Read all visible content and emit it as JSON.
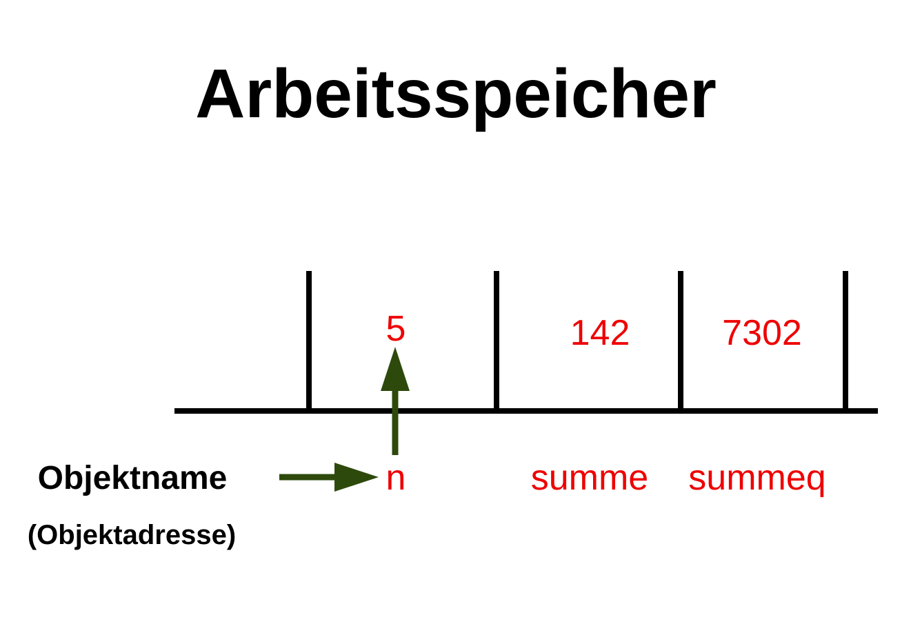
{
  "title": "Arbeitsspeicher",
  "colors": {
    "text": "#000000",
    "value": "#ee0000",
    "arrow": "#2d4a0c",
    "line": "#000000"
  },
  "cells": [
    {
      "value": "5",
      "name": "n"
    },
    {
      "value": "142",
      "name": "summe"
    },
    {
      "value": "7302",
      "name": "summeq"
    }
  ],
  "legend": {
    "label": "Objektname",
    "sublabel": "(Objektadresse)"
  },
  "icons": {
    "name_arrow": "arrow-right-icon",
    "address_arrow": "arrow-up-icon"
  }
}
